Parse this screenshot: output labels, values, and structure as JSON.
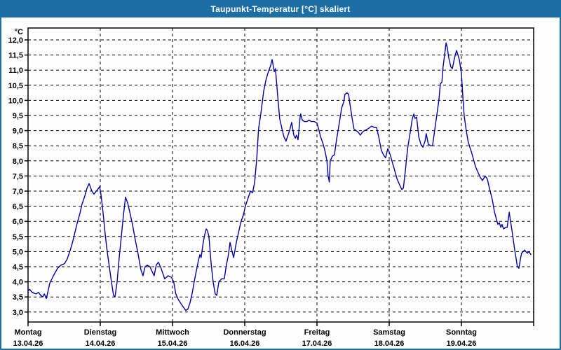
{
  "window": {
    "title": "Taupunkt-Temperatur [°C] skaliert",
    "title_bar_color": "#1C6EA4",
    "border_color": "#1C6EA4",
    "background_color": "#FDFEFD"
  },
  "chart_data": {
    "type": "line",
    "title": "Taupunkt-Temperatur [°C] skaliert",
    "unit_label": "°C",
    "ylabel": "°C",
    "grid": "dashed",
    "legend": "none",
    "line_color": "#0000A8",
    "axis_color": "#000000",
    "ylim": [
      2.7,
      12.4
    ],
    "yticks": [
      12.0,
      11.5,
      11.0,
      10.5,
      10.0,
      9.5,
      9.0,
      8.5,
      8.0,
      7.5,
      7.0,
      6.5,
      6.0,
      5.5,
      5.0,
      4.5,
      4.0,
      3.5,
      3.0
    ],
    "ytick_labels": [
      "12,0",
      "11,5",
      "11,0",
      "10,5",
      "10,0",
      "9,5",
      "9,0",
      "8,5",
      "8,0",
      "7,5",
      "7,0",
      "6,5",
      "6,0",
      "5,5",
      "5,0",
      "4,5",
      "4,0",
      "3,5",
      "3,0"
    ],
    "x_unit": "hours_from_monday_00:00",
    "xlim": [
      0,
      168
    ],
    "axis_end_hour": 168,
    "day_ticks": [
      {
        "hour": 0,
        "day": "Montag",
        "date": "13.04.26"
      },
      {
        "hour": 24,
        "day": "Dienstag",
        "date": "14.04.26"
      },
      {
        "hour": 48,
        "day": "Mittwoch",
        "date": "15.04.26"
      },
      {
        "hour": 72,
        "day": "Donnerstag",
        "date": "16.04.26"
      },
      {
        "hour": 96,
        "day": "Freitag",
        "date": "17.04.26"
      },
      {
        "hour": 120,
        "day": "Samstag",
        "date": "18.04.26"
      },
      {
        "hour": 144,
        "day": "Sonntag",
        "date": "19.04.26"
      }
    ],
    "series": [
      {
        "name": "Taupunkt-Temperatur",
        "points": [
          [
            0.0,
            3.7
          ],
          [
            0.5,
            3.75
          ],
          [
            1.4,
            3.65
          ],
          [
            2.6,
            3.6
          ],
          [
            3.5,
            3.65
          ],
          [
            4.2,
            3.55
          ],
          [
            4.9,
            3.5
          ],
          [
            5.4,
            3.6
          ],
          [
            6.1,
            3.45
          ],
          [
            7.2,
            3.95
          ],
          [
            8.4,
            4.2
          ],
          [
            9.8,
            4.45
          ],
          [
            10.9,
            4.55
          ],
          [
            12.1,
            4.6
          ],
          [
            13.0,
            4.75
          ],
          [
            14.2,
            5.1
          ],
          [
            14.9,
            5.35
          ],
          [
            15.6,
            5.65
          ],
          [
            16.5,
            6.0
          ],
          [
            17.2,
            6.25
          ],
          [
            17.9,
            6.55
          ],
          [
            18.9,
            6.85
          ],
          [
            19.6,
            7.1
          ],
          [
            20.3,
            7.25
          ],
          [
            21.2,
            7.0
          ],
          [
            21.9,
            6.9
          ],
          [
            23.1,
            7.05
          ],
          [
            23.8,
            7.15
          ],
          [
            24.2,
            6.9
          ],
          [
            24.7,
            6.5
          ],
          [
            25.2,
            6.0
          ],
          [
            25.6,
            5.6
          ],
          [
            26.3,
            5.0
          ],
          [
            27.0,
            4.5
          ],
          [
            27.7,
            4.0
          ],
          [
            28.4,
            3.55
          ],
          [
            28.9,
            3.5
          ],
          [
            29.6,
            4.0
          ],
          [
            30.3,
            4.8
          ],
          [
            31.0,
            5.5
          ],
          [
            31.7,
            6.2
          ],
          [
            32.4,
            6.8
          ],
          [
            33.1,
            6.6
          ],
          [
            33.8,
            6.3
          ],
          [
            34.7,
            5.9
          ],
          [
            35.6,
            5.4
          ],
          [
            36.6,
            4.9
          ],
          [
            37.5,
            4.4
          ],
          [
            38.2,
            4.2
          ],
          [
            38.9,
            4.5
          ],
          [
            39.6,
            4.55
          ],
          [
            40.5,
            4.5
          ],
          [
            41.4,
            4.3
          ],
          [
            41.9,
            4.2
          ],
          [
            42.6,
            4.55
          ],
          [
            43.3,
            4.65
          ],
          [
            44.2,
            4.45
          ],
          [
            45.4,
            4.1
          ],
          [
            46.5,
            4.2
          ],
          [
            47.6,
            4.15
          ],
          [
            48.4,
            4.0
          ],
          [
            49.1,
            3.6
          ],
          [
            50.0,
            3.4
          ],
          [
            51.0,
            3.25
          ],
          [
            51.7,
            3.15
          ],
          [
            52.4,
            3.05
          ],
          [
            53.1,
            3.1
          ],
          [
            53.8,
            3.3
          ],
          [
            54.5,
            3.6
          ],
          [
            55.2,
            4.0
          ],
          [
            55.9,
            4.35
          ],
          [
            56.6,
            4.7
          ],
          [
            57.1,
            4.9
          ],
          [
            57.5,
            4.8
          ],
          [
            58.2,
            5.3
          ],
          [
            58.7,
            5.55
          ],
          [
            59.2,
            5.75
          ],
          [
            59.6,
            5.7
          ],
          [
            60.1,
            5.5
          ],
          [
            60.8,
            4.65
          ],
          [
            61.5,
            4.0
          ],
          [
            62.2,
            3.6
          ],
          [
            62.7,
            3.55
          ],
          [
            63.4,
            4.0
          ],
          [
            64.3,
            4.1
          ],
          [
            65.2,
            4.1
          ],
          [
            65.9,
            4.55
          ],
          [
            66.6,
            4.9
          ],
          [
            67.1,
            5.3
          ],
          [
            67.8,
            5.0
          ],
          [
            68.3,
            4.8
          ],
          [
            69.2,
            5.3
          ],
          [
            70.1,
            5.7
          ],
          [
            70.8,
            6.0
          ],
          [
            71.5,
            6.2
          ],
          [
            72.2,
            6.5
          ],
          [
            73.2,
            6.8
          ],
          [
            73.9,
            7.0
          ],
          [
            74.6,
            6.95
          ],
          [
            75.3,
            7.3
          ],
          [
            76.0,
            8.1
          ],
          [
            76.6,
            9.05
          ],
          [
            77.4,
            9.6
          ],
          [
            78.3,
            10.3
          ],
          [
            79.0,
            10.65
          ],
          [
            79.7,
            10.9
          ],
          [
            80.6,
            11.15
          ],
          [
            81.1,
            11.35
          ],
          [
            81.8,
            10.95
          ],
          [
            82.2,
            11.05
          ],
          [
            82.9,
            10.2
          ],
          [
            83.6,
            9.4
          ],
          [
            84.4,
            9.05
          ],
          [
            85.0,
            8.8
          ],
          [
            85.7,
            8.65
          ],
          [
            86.9,
            9.0
          ],
          [
            87.6,
            9.27
          ],
          [
            88.3,
            8.85
          ],
          [
            88.8,
            8.75
          ],
          [
            89.2,
            8.85
          ],
          [
            89.7,
            8.7
          ],
          [
            90.4,
            9.45
          ],
          [
            90.6,
            9.55
          ],
          [
            91.1,
            9.35
          ],
          [
            91.8,
            9.3
          ],
          [
            92.7,
            9.3
          ],
          [
            93.4,
            9.35
          ],
          [
            94.1,
            9.3
          ],
          [
            95.1,
            9.3
          ],
          [
            96.0,
            9.25
          ],
          [
            96.7,
            9.0
          ],
          [
            97.2,
            8.8
          ],
          [
            97.9,
            8.6
          ],
          [
            98.6,
            8.35
          ],
          [
            99.3,
            8.0
          ],
          [
            99.7,
            7.5
          ],
          [
            100.1,
            7.3
          ],
          [
            100.4,
            8.0
          ],
          [
            101.1,
            8.15
          ],
          [
            101.8,
            8.2
          ],
          [
            102.5,
            8.7
          ],
          [
            103.5,
            9.3
          ],
          [
            104.2,
            9.75
          ],
          [
            104.9,
            9.95
          ],
          [
            105.3,
            10.2
          ],
          [
            106.0,
            10.25
          ],
          [
            106.5,
            10.2
          ],
          [
            107.0,
            9.85
          ],
          [
            107.7,
            9.4
          ],
          [
            108.3,
            9.05
          ],
          [
            109.0,
            9.0
          ],
          [
            109.7,
            8.95
          ],
          [
            110.4,
            8.85
          ],
          [
            111.1,
            8.95
          ],
          [
            111.8,
            9.0
          ],
          [
            112.8,
            9.05
          ],
          [
            113.5,
            9.1
          ],
          [
            114.2,
            9.15
          ],
          [
            115.1,
            9.1
          ],
          [
            115.8,
            9.1
          ],
          [
            116.5,
            8.8
          ],
          [
            117.4,
            8.35
          ],
          [
            118.1,
            8.2
          ],
          [
            118.8,
            8.1
          ],
          [
            119.5,
            8.4
          ],
          [
            120.0,
            8.3
          ],
          [
            120.5,
            8.15
          ],
          [
            121.2,
            7.9
          ],
          [
            121.9,
            7.65
          ],
          [
            122.6,
            7.4
          ],
          [
            123.5,
            7.2
          ],
          [
            124.2,
            7.05
          ],
          [
            124.7,
            7.1
          ],
          [
            125.4,
            7.7
          ],
          [
            126.1,
            8.4
          ],
          [
            127.0,
            8.95
          ],
          [
            127.7,
            9.4
          ],
          [
            128.2,
            9.55
          ],
          [
            128.6,
            9.4
          ],
          [
            129.1,
            9.45
          ],
          [
            129.8,
            8.8
          ],
          [
            130.5,
            8.55
          ],
          [
            131.2,
            8.45
          ],
          [
            131.9,
            8.65
          ],
          [
            132.3,
            8.9
          ],
          [
            133.0,
            8.55
          ],
          [
            133.7,
            8.5
          ],
          [
            134.4,
            8.5
          ],
          [
            135.1,
            9.0
          ],
          [
            135.8,
            9.5
          ],
          [
            136.5,
            10.0
          ],
          [
            137.0,
            10.55
          ],
          [
            137.5,
            10.6
          ],
          [
            137.9,
            11.1
          ],
          [
            138.4,
            11.5
          ],
          [
            138.9,
            11.9
          ],
          [
            139.3,
            11.75
          ],
          [
            139.8,
            11.4
          ],
          [
            140.5,
            11.1
          ],
          [
            141.0,
            11.05
          ],
          [
            141.7,
            11.4
          ],
          [
            142.4,
            11.65
          ],
          [
            143.3,
            11.35
          ],
          [
            144.0,
            10.9
          ],
          [
            144.5,
            10.1
          ],
          [
            144.9,
            9.5
          ],
          [
            145.6,
            9.0
          ],
          [
            146.3,
            8.6
          ],
          [
            147.3,
            8.3
          ],
          [
            148.0,
            8.05
          ],
          [
            148.7,
            7.8
          ],
          [
            149.6,
            7.6
          ],
          [
            150.3,
            7.45
          ],
          [
            151.0,
            7.35
          ],
          [
            151.9,
            7.5
          ],
          [
            152.6,
            7.4
          ],
          [
            153.3,
            7.1
          ],
          [
            154.3,
            6.7
          ],
          [
            155.0,
            6.3
          ],
          [
            155.7,
            6.05
          ],
          [
            156.1,
            5.9
          ],
          [
            156.6,
            5.95
          ],
          [
            157.1,
            5.8
          ],
          [
            157.5,
            5.9
          ],
          [
            158.0,
            5.75
          ],
          [
            158.7,
            5.8
          ],
          [
            159.2,
            5.8
          ],
          [
            159.9,
            6.3
          ],
          [
            160.3,
            6.0
          ],
          [
            160.8,
            5.7
          ],
          [
            161.3,
            5.35
          ],
          [
            161.7,
            5.05
          ],
          [
            162.2,
            4.75
          ],
          [
            162.6,
            4.5
          ],
          [
            163.1,
            4.45
          ],
          [
            163.6,
            4.75
          ],
          [
            164.0,
            4.95
          ],
          [
            164.5,
            5.0
          ],
          [
            165.0,
            5.05
          ],
          [
            165.4,
            5.0
          ],
          [
            165.9,
            4.95
          ],
          [
            166.4,
            5.0
          ],
          [
            167.1,
            4.9
          ]
        ]
      }
    ]
  }
}
